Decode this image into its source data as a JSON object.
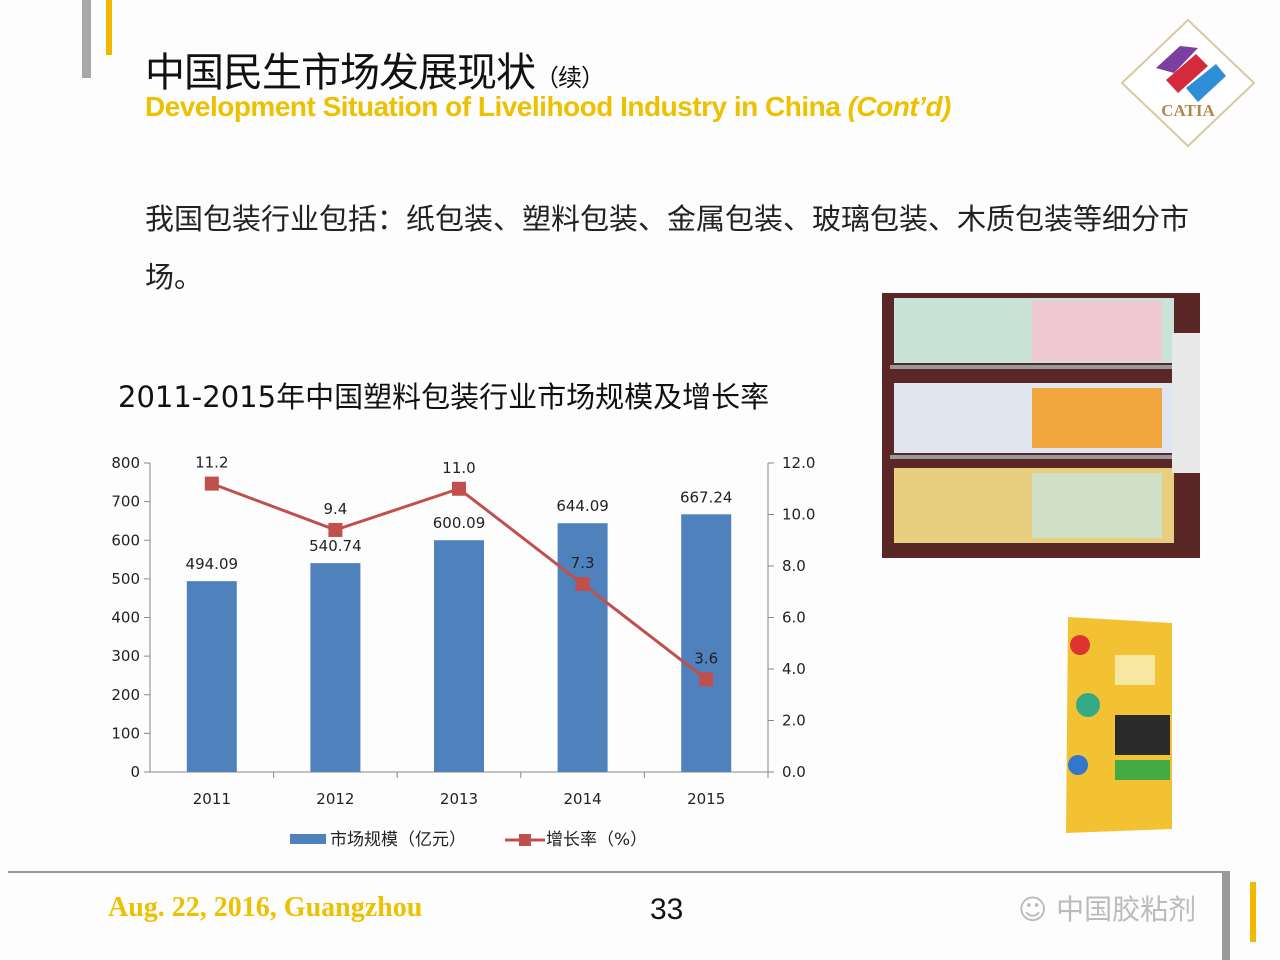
{
  "header": {
    "title_cn": "中国民生市场发展现状",
    "title_cn_suffix": "（续）",
    "title_en": "Development Situation of Livelihood Industry in China",
    "title_en_suffix": "(Cont’d)",
    "logo_text": "CATIA"
  },
  "body": {
    "text": "我国包装行业包括：纸包装、塑料包装、金属包装、玻璃包装、木质包装等细分市场。"
  },
  "chart_data": {
    "type": "bar",
    "title": "2011-2015年中国塑料包装行业市场规模及增长率",
    "categories": [
      "2011",
      "2012",
      "2013",
      "2014",
      "2015"
    ],
    "series": [
      {
        "name": "市场规模（亿元）",
        "type": "bar",
        "axis": "left",
        "color": "#4f81bd",
        "values": [
          494.09,
          540.74,
          600.09,
          644.09,
          667.24
        ],
        "labels": [
          "494.09",
          "540.74",
          "600.09",
          "644.09",
          "667.24"
        ]
      },
      {
        "name": "增长率（%）",
        "type": "line",
        "axis": "right",
        "color": "#c0504d",
        "values": [
          11.2,
          9.4,
          11.0,
          7.3,
          3.6
        ],
        "labels": [
          "11.2",
          "9.4",
          "11.0",
          "7.3",
          "3.6"
        ]
      }
    ],
    "ylim_left": [
      0,
      800
    ],
    "yticks_left": [
      "0",
      "100",
      "200",
      "300",
      "400",
      "500",
      "600",
      "700",
      "800"
    ],
    "ylim_right": [
      0,
      12
    ],
    "yticks_right": [
      "0.0",
      "2.0",
      "4.0",
      "6.0",
      "8.0",
      "10.0",
      "12.0"
    ],
    "legend": "bottom",
    "grid": false
  },
  "footer": {
    "date_location": "Aug. 22, 2016, Guangzhou",
    "page_number": "33",
    "watermark": "中国胶粘剂"
  },
  "colors": {
    "accent_yellow": "#eec100",
    "bar_blue": "#4f81bd",
    "line_red": "#c0504d"
  }
}
